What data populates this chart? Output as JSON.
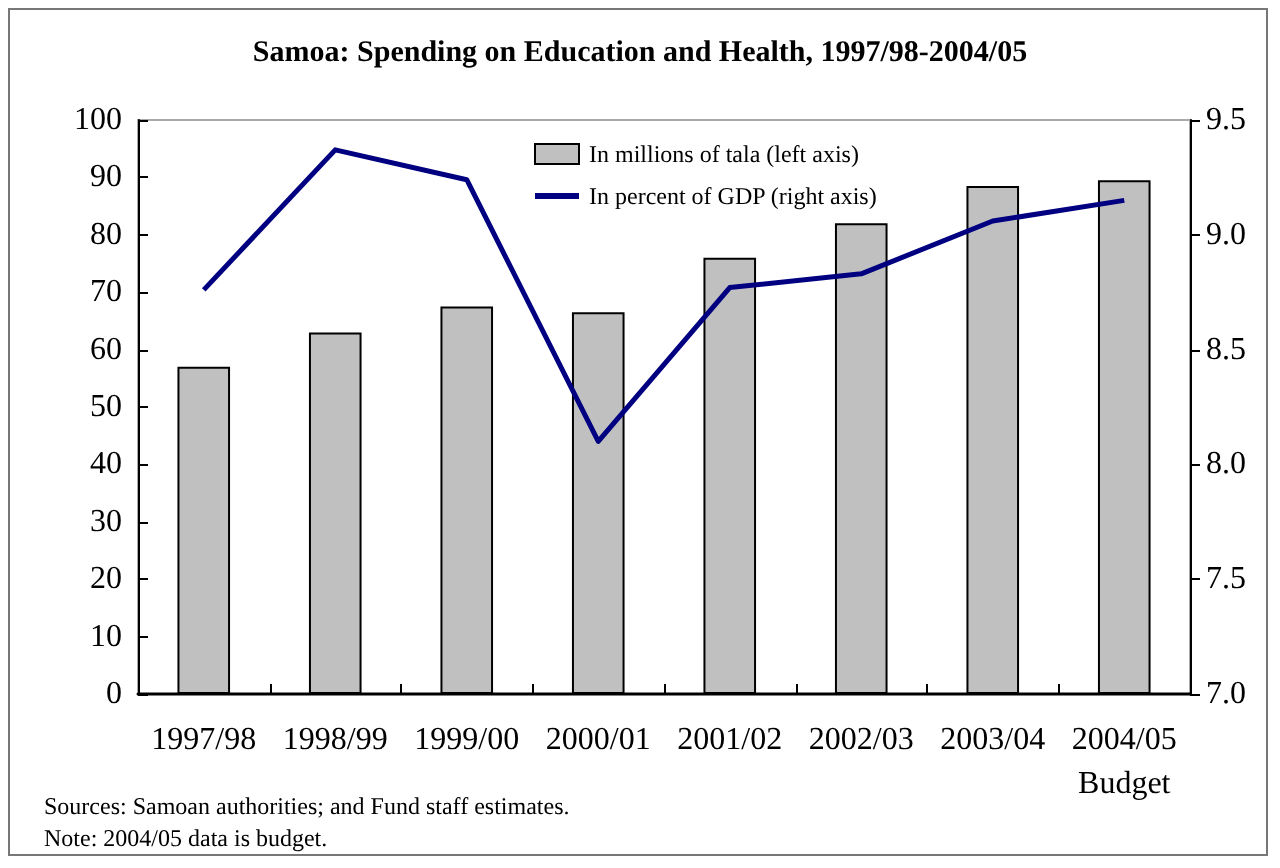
{
  "chart_data": {
    "type": "bar",
    "title": "Samoa: Spending on Education and Health, 1997/98-2004/05",
    "categories": [
      "1997/98",
      "1998/99",
      "1999/00",
      "2000/01",
      "2001/02",
      "2002/03",
      "2003/04",
      "2004/05\nBudget"
    ],
    "series": [
      {
        "name": "In millions of tala (left axis)",
        "color": "#c0c0c0",
        "values": [
          57,
          63,
          67.5,
          66.5,
          76,
          82,
          88.5,
          89.5
        ]
      },
      {
        "name": "In percent of GDP (right axis)",
        "type": "line",
        "axis": "y2",
        "color": "#000080",
        "values": [
          8.76,
          9.37,
          9.24,
          8.1,
          8.77,
          8.83,
          9.06,
          9.15
        ]
      }
    ],
    "ylim": [
      0,
      100
    ],
    "yticks": [
      0,
      10,
      20,
      30,
      40,
      50,
      60,
      70,
      80,
      90,
      100
    ],
    "y2lim": [
      7,
      9.5
    ],
    "y2ticks": [
      {
        "value": 7,
        "label": "7.0"
      },
      {
        "value": 7.5,
        "label": "7.5"
      },
      {
        "value": 8,
        "label": "8.0"
      },
      {
        "value": 8.5,
        "label": "8.5"
      },
      {
        "value": 9,
        "label": "9.0"
      },
      {
        "value": 9.5,
        "label": "9.5"
      }
    ],
    "legend": "top",
    "grid": false,
    "marker": "none",
    "line_style": "solid",
    "annotations": [
      "Sources: Samoan authorities; and Fund staff estimates.",
      "Note: 2004/05 data is budget."
    ]
  }
}
